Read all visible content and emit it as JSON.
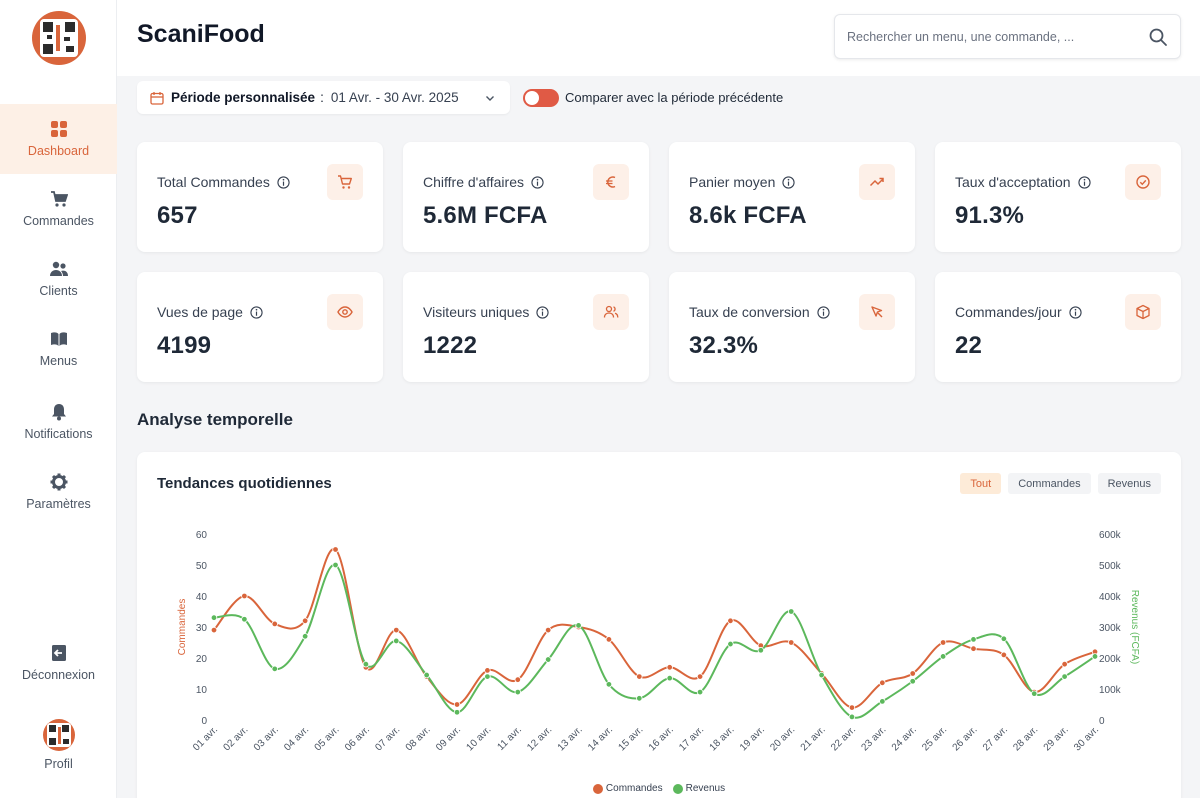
{
  "app": {
    "title": "ScaniFood"
  },
  "search": {
    "placeholder": "Rechercher un menu, une commande, ..."
  },
  "sidebar": {
    "items": [
      {
        "label": "Dashboard",
        "icon": "grid-icon"
      },
      {
        "label": "Commandes",
        "icon": "cart-icon"
      },
      {
        "label": "Clients",
        "icon": "users-icon"
      },
      {
        "label": "Menus",
        "icon": "book-icon"
      },
      {
        "label": "Notifications",
        "icon": "bell-icon"
      },
      {
        "label": "Paramètres",
        "icon": "gear-icon"
      }
    ],
    "logout": "Déconnexion",
    "profile": "Profil"
  },
  "filters": {
    "period_label": "Période personnalisée",
    "period_sep": ":",
    "period_value": "01 Avr. - 30 Avr. 2025",
    "compare_label": "Comparer avec la période précédente",
    "compare_on": true
  },
  "kpis": [
    {
      "label": "Total Commandes",
      "value": "657",
      "icon": "cart-icon"
    },
    {
      "label": "Chiffre d'affaires",
      "value": "5.6M FCFA",
      "icon": "euro-icon"
    },
    {
      "label": "Panier moyen",
      "value": "8.6k FCFA",
      "icon": "trending-up-icon"
    },
    {
      "label": "Taux d'acceptation",
      "value": "91.3%",
      "icon": "check-circle-icon"
    },
    {
      "label": "Vues de page",
      "value": "4199",
      "icon": "eye-icon"
    },
    {
      "label": "Visiteurs uniques",
      "value": "1222",
      "icon": "users-icon"
    },
    {
      "label": "Taux de conversion",
      "value": "32.3%",
      "icon": "cursor-icon"
    },
    {
      "label": "Commandes/jour",
      "value": "22",
      "icon": "box-icon"
    }
  ],
  "section": {
    "title": "Analyse temporelle"
  },
  "chart_panel": {
    "title": "Tendances quotidiennes",
    "tabs": [
      "Tout",
      "Commandes",
      "Revenus"
    ],
    "active_tab": "Tout"
  },
  "colors": {
    "accent": "#d9653b",
    "commandes": "#d9653b",
    "revenus": "#5cb85c"
  },
  "chart_data": {
    "type": "line",
    "x": [
      "01 avr.",
      "02 avr.",
      "03 avr.",
      "04 avr.",
      "05 avr.",
      "06 avr.",
      "07 avr.",
      "08 avr.",
      "09 avr.",
      "10 avr.",
      "11 avr.",
      "12 avr.",
      "13 avr.",
      "14 avr.",
      "15 avr.",
      "16 avr.",
      "17 avr.",
      "18 avr.",
      "19 avr.",
      "20 avr.",
      "21 avr.",
      "22 avr.",
      "23 avr.",
      "24 avr.",
      "25 avr.",
      "26 avr.",
      "27 avr.",
      "28 avr.",
      "29 avr.",
      "30 avr."
    ],
    "series": [
      {
        "name": "Commandes",
        "axis": "left",
        "color": "#d9653b",
        "values": [
          29,
          40,
          31,
          32,
          55,
          17,
          29,
          14,
          5,
          16,
          13,
          29,
          30,
          26,
          14,
          17,
          14,
          32,
          24,
          25,
          15,
          4,
          12,
          15,
          25,
          23,
          21,
          9,
          18,
          22
        ]
      },
      {
        "name": "Revenus",
        "axis": "right",
        "color": "#5cb85c",
        "values": [
          330000,
          325000,
          165000,
          270000,
          500000,
          180000,
          255000,
          145000,
          25000,
          140000,
          90000,
          195000,
          305000,
          115000,
          70000,
          135000,
          90000,
          245000,
          225000,
          350000,
          145000,
          10000,
          60000,
          125000,
          205000,
          260000,
          262000,
          85000,
          140000,
          205000
        ]
      }
    ],
    "ylabel_left": "Commandes",
    "ylabel_right": "Revenus (FCFA)",
    "ylim_left": [
      0,
      60
    ],
    "ylim_right": [
      0,
      600000
    ],
    "yticks_left": [
      "0",
      "10",
      "20",
      "30",
      "40",
      "50",
      "60"
    ],
    "yticks_right": [
      "0",
      "100k",
      "200k",
      "300k",
      "400k",
      "500k",
      "600k"
    ],
    "legend": [
      "Commandes",
      "Revenus"
    ],
    "legend_position": "bottom-center",
    "grid": false
  }
}
